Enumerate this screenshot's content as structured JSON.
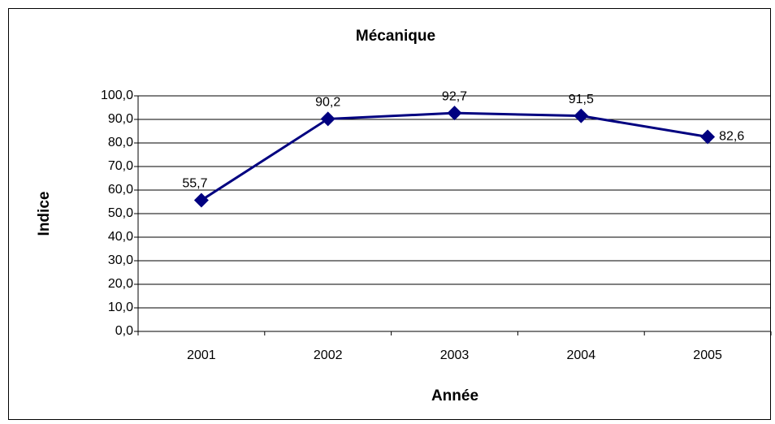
{
  "chart_data": {
    "type": "line",
    "title": "Mécanique",
    "xlabel": "Année",
    "ylabel": "Indice",
    "categories": [
      "2001",
      "2002",
      "2003",
      "2004",
      "2005"
    ],
    "series": [
      {
        "name": "Mécanique",
        "color": "#000080",
        "values": [
          55.7,
          90.2,
          92.7,
          91.5,
          82.6
        ],
        "value_labels": [
          "55,7",
          "90,2",
          "92,7",
          "91,5",
          "82,6"
        ]
      }
    ],
    "ylim": [
      0,
      100
    ],
    "yticks": [
      {
        "value": 0,
        "label": "0,0"
      },
      {
        "value": 10,
        "label": "10,0"
      },
      {
        "value": 20,
        "label": "20,0"
      },
      {
        "value": 30,
        "label": "30,0"
      },
      {
        "value": 40,
        "label": "40,0"
      },
      {
        "value": 50,
        "label": "50,0"
      },
      {
        "value": 60,
        "label": "60,0"
      },
      {
        "value": 70,
        "label": "70,0"
      },
      {
        "value": 80,
        "label": "80,0"
      },
      {
        "value": 90,
        "label": "90,0"
      },
      {
        "value": 100,
        "label": "100,0"
      }
    ],
    "grid": true
  }
}
